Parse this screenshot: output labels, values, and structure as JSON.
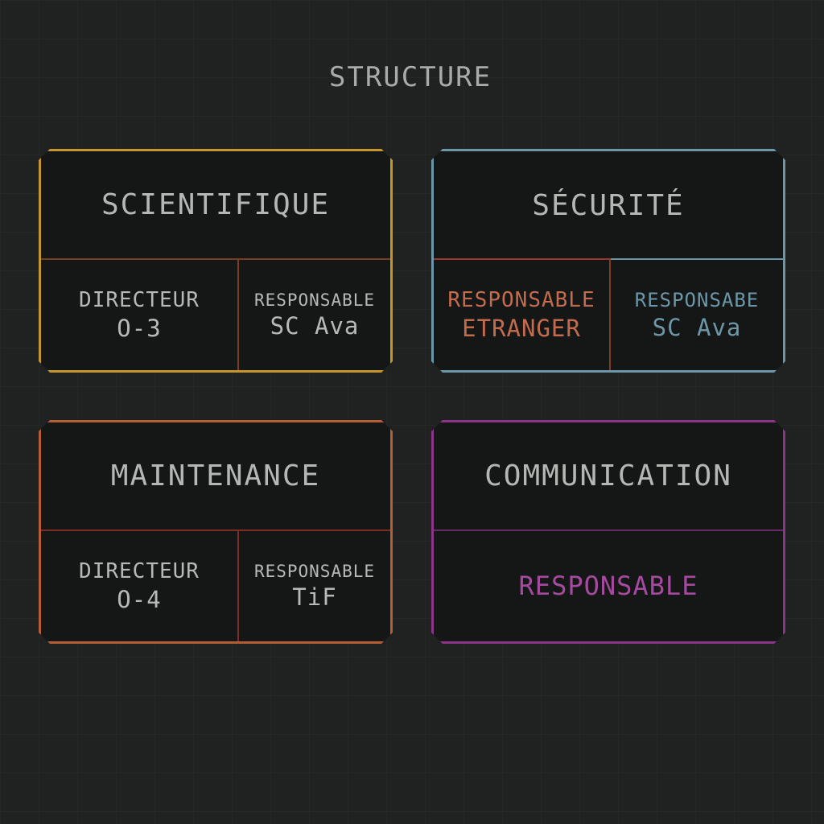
{
  "title": "STRUCTURE",
  "colors": {
    "scientifique": "#c5962e",
    "securite": "#6b97a8",
    "securite_red": "#b2563e",
    "maintenance": "#b55d37",
    "communication": "#8c3488",
    "text": "#b5b7b5"
  },
  "units": [
    {
      "name": "SCIENTIFIQUE",
      "left": {
        "role": "DIRECTEUR",
        "holder": "O-3"
      },
      "right": {
        "role": "RESPONSABLE",
        "holder": "SC Ava"
      }
    },
    {
      "name": "SÉCURITÉ",
      "left": {
        "role": "RESPONSABLE",
        "holder": "ETRANGER"
      },
      "right": {
        "role": "RESPONSABE",
        "holder": "SC Ava"
      }
    },
    {
      "name": "MAINTENANCE",
      "left": {
        "role": "DIRECTEUR",
        "holder": "O-4"
      },
      "right": {
        "role": "RESPONSABLE",
        "holder": "TiF"
      }
    },
    {
      "name": "COMMUNICATION",
      "single": {
        "role": "RESPONSABLE"
      }
    }
  ]
}
